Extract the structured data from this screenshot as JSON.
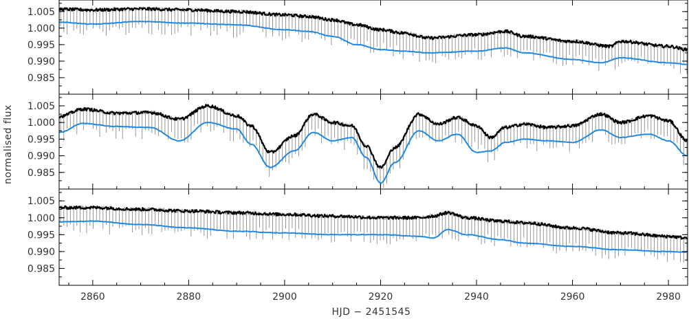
{
  "chart_data": [
    {
      "type": "line",
      "panel": "top",
      "xlim": [
        2853,
        2984
      ],
      "ylim": [
        0.98,
        1.0085
      ],
      "yticks": [
        "1.005",
        "1.000",
        "0.995",
        "0.990",
        "0.985"
      ],
      "ytick_values": [
        1.005,
        1.0,
        0.995,
        0.99,
        0.985
      ],
      "xticks": [
        "2860",
        "2880",
        "2900",
        "2920",
        "2940",
        "2960",
        "2980"
      ],
      "xtick_values": [
        2860,
        2880,
        2900,
        2920,
        2940,
        2960,
        2980
      ],
      "series": [
        {
          "kind": "raw-gray-with-transit-spikes",
          "color": "#8a8a8a",
          "x": [
            2853,
            2860,
            2870,
            2880,
            2890,
            2900,
            2905,
            2910,
            2915,
            2920,
            2925,
            2930,
            2940,
            2946,
            2950,
            2960,
            2968,
            2970,
            2980,
            2984
          ],
          "y": [
            1.0057,
            1.0055,
            1.0058,
            1.0055,
            1.005,
            1.004,
            1.0035,
            1.0025,
            1.001,
            0.9995,
            0.9985,
            0.997,
            0.998,
            0.999,
            0.9975,
            0.996,
            0.9945,
            0.996,
            0.9945,
            0.9935
          ]
        },
        {
          "kind": "binned-black",
          "color": "#000000",
          "x": [
            2853,
            2860,
            2870,
            2880,
            2890,
            2900,
            2905,
            2910,
            2915,
            2920,
            2925,
            2930,
            2940,
            2946,
            2950,
            2960,
            2968,
            2970,
            2980,
            2984
          ],
          "y": [
            1.0057,
            1.0055,
            1.0058,
            1.0055,
            1.005,
            1.004,
            1.0035,
            1.0025,
            1.001,
            0.9995,
            0.9985,
            0.997,
            0.998,
            0.999,
            0.9975,
            0.996,
            0.9945,
            0.996,
            0.9945,
            0.9935
          ]
        },
        {
          "kind": "model-blue",
          "color": "#1e88e5",
          "x": [
            2853,
            2860,
            2870,
            2880,
            2890,
            2900,
            2905,
            2910,
            2915,
            2920,
            2925,
            2930,
            2940,
            2946,
            2950,
            2960,
            2966,
            2970,
            2980,
            2984
          ],
          "y": [
            1.0018,
            1.0012,
            1.002,
            1.0015,
            1.001,
            0.9995,
            0.999,
            0.9975,
            0.995,
            0.9935,
            0.993,
            0.9925,
            0.993,
            0.994,
            0.9925,
            0.9905,
            0.9895,
            0.991,
            0.9895,
            0.989
          ]
        }
      ]
    },
    {
      "type": "line",
      "panel": "middle",
      "xlim": [
        2853,
        2984
      ],
      "ylim": [
        0.98,
        1.0085
      ],
      "yticks": [
        "1.005",
        "1.000",
        "0.995",
        "0.990",
        "0.985"
      ],
      "ytick_values": [
        1.005,
        1.0,
        0.995,
        0.99,
        0.985
      ],
      "series": [
        {
          "kind": "raw-gray-with-transit-spikes",
          "color": "#8a8a8a",
          "x": [
            2853,
            2858,
            2865,
            2872,
            2878,
            2884,
            2890,
            2893,
            2897,
            2902,
            2906,
            2910,
            2914,
            2917,
            2920,
            2923,
            2928,
            2932,
            2936,
            2940,
            2943,
            2946,
            2950,
            2955,
            2960,
            2966,
            2970,
            2976,
            2980,
            2984
          ],
          "y": [
            1.0018,
            1.004,
            1.0028,
            1.003,
            1.001,
            1.005,
            1.002,
            0.999,
            0.991,
            0.996,
            1.0025,
            1.0,
            0.999,
            0.993,
            0.9865,
            0.9925,
            1.0025,
            0.9995,
            1.0015,
            0.999,
            0.9955,
            0.9985,
            0.9995,
            0.9985,
            0.999,
            1.0025,
            1.0,
            1.002,
            1.0005,
            0.9945
          ]
        },
        {
          "kind": "binned-black",
          "color": "#000000",
          "x": [
            2853,
            2858,
            2865,
            2872,
            2878,
            2884,
            2890,
            2893,
            2897,
            2902,
            2906,
            2910,
            2914,
            2917,
            2920,
            2923,
            2928,
            2932,
            2936,
            2940,
            2943,
            2946,
            2950,
            2955,
            2960,
            2966,
            2970,
            2976,
            2980,
            2984
          ],
          "y": [
            1.0018,
            1.004,
            1.0028,
            1.003,
            1.001,
            1.005,
            1.002,
            0.999,
            0.991,
            0.996,
            1.0025,
            1.0,
            0.999,
            0.993,
            0.9865,
            0.9925,
            1.0025,
            0.9995,
            1.0015,
            0.999,
            0.9955,
            0.9985,
            0.9995,
            0.9985,
            0.999,
            1.0025,
            1.0,
            1.002,
            1.0005,
            0.9945
          ]
        },
        {
          "kind": "model-blue",
          "color": "#1e88e5",
          "x": [
            2853,
            2858,
            2865,
            2872,
            2878,
            2884,
            2890,
            2893,
            2897,
            2902,
            2906,
            2910,
            2914,
            2917,
            2920,
            2923,
            2928,
            2932,
            2936,
            2940,
            2943,
            2946,
            2950,
            2955,
            2960,
            2966,
            2970,
            2976,
            2980,
            2984
          ],
          "y": [
            0.997,
            0.9997,
            0.9988,
            0.9985,
            0.9945,
            1.0,
            0.998,
            0.9935,
            0.9865,
            0.9915,
            0.997,
            0.9945,
            0.9955,
            0.9895,
            0.9818,
            0.988,
            0.9975,
            0.9945,
            0.9965,
            0.991,
            0.9915,
            0.994,
            0.995,
            0.9945,
            0.994,
            0.9978,
            0.9955,
            0.9965,
            0.9945,
            0.99
          ]
        }
      ]
    },
    {
      "type": "line",
      "panel": "bottom",
      "xlim": [
        2853,
        2984
      ],
      "ylim": [
        0.98,
        1.0085
      ],
      "yticks": [
        "1.005",
        "1.000",
        "0.995",
        "0.990",
        "0.985"
      ],
      "ytick_values": [
        1.005,
        1.0,
        0.995,
        0.99,
        0.985
      ],
      "series": [
        {
          "kind": "raw-gray-with-transit-spikes",
          "color": "#8a8a8a",
          "x": [
            2853,
            2860,
            2870,
            2880,
            2890,
            2900,
            2910,
            2920,
            2928,
            2931,
            2934,
            2938,
            2945,
            2950,
            2960,
            2970,
            2980,
            2984
          ],
          "y": [
            1.003,
            1.003,
            1.0025,
            1.002,
            1.0015,
            1.001,
            1.0005,
            1.0,
            1.0,
            1.0005,
            1.0015,
            1.0,
            0.999,
            0.9985,
            0.997,
            0.9955,
            0.9945,
            0.994
          ]
        },
        {
          "kind": "binned-black",
          "color": "#000000",
          "x": [
            2853,
            2860,
            2870,
            2880,
            2890,
            2900,
            2910,
            2920,
            2928,
            2931,
            2934,
            2938,
            2945,
            2950,
            2960,
            2970,
            2980,
            2984
          ],
          "y": [
            1.003,
            1.003,
            1.0025,
            1.002,
            1.0015,
            1.001,
            1.0005,
            1.0,
            1.0,
            1.0005,
            1.0015,
            1.0,
            0.999,
            0.9985,
            0.997,
            0.9955,
            0.9945,
            0.994
          ]
        },
        {
          "kind": "model-blue",
          "color": "#1e88e5",
          "x": [
            2853,
            2860,
            2870,
            2880,
            2890,
            2900,
            2910,
            2920,
            2928,
            2931,
            2934,
            2938,
            2945,
            2950,
            2960,
            2970,
            2980,
            2984
          ],
          "y": [
            0.9988,
            0.999,
            0.998,
            0.997,
            0.996,
            0.9955,
            0.995,
            0.995,
            0.9945,
            0.994,
            0.9965,
            0.995,
            0.9935,
            0.9925,
            0.9915,
            0.9905,
            0.99,
            0.9898
          ]
        }
      ]
    }
  ],
  "labels": {
    "ylabel": "normalised flux",
    "xlabel": "HJD − 2451545"
  }
}
